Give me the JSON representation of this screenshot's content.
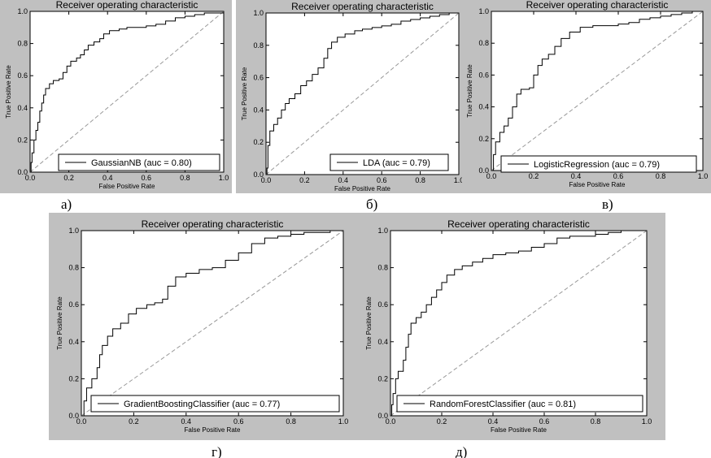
{
  "colors": {
    "panel_bg": "#c0c0c0",
    "plot_bg": "#ffffff",
    "curve": "#000000",
    "diagonal": "#999999"
  },
  "chart_data": [
    {
      "type": "line",
      "title": "Receiver operating characteristic",
      "xlabel": "False Positive Rate",
      "ylabel": "True Positive Rate",
      "xlim": [
        0,
        1
      ],
      "ylim": [
        0,
        1
      ],
      "xticks": [
        "0.0",
        "0.2",
        "0.4",
        "0.6",
        "0.8",
        "1.0"
      ],
      "yticks": [
        "0.0",
        "0.2",
        "0.4",
        "0.6",
        "0.8",
        "1.0"
      ],
      "legend": "GaussianNB (auc = 0.80)",
      "legend_position": "lower-right",
      "caption": "а)",
      "series": [
        {
          "name": "GaussianNB",
          "points": [
            [
              0,
              0
            ],
            [
              0.005,
              0.06
            ],
            [
              0.01,
              0.12
            ],
            [
              0.02,
              0.2
            ],
            [
              0.03,
              0.26
            ],
            [
              0.04,
              0.31
            ],
            [
              0.05,
              0.38
            ],
            [
              0.06,
              0.43
            ],
            [
              0.07,
              0.48
            ],
            [
              0.08,
              0.52
            ],
            [
              0.1,
              0.55
            ],
            [
              0.12,
              0.57
            ],
            [
              0.15,
              0.58
            ],
            [
              0.17,
              0.62
            ],
            [
              0.19,
              0.66
            ],
            [
              0.21,
              0.69
            ],
            [
              0.24,
              0.71
            ],
            [
              0.26,
              0.73
            ],
            [
              0.28,
              0.76
            ],
            [
              0.3,
              0.79
            ],
            [
              0.33,
              0.81
            ],
            [
              0.36,
              0.83
            ],
            [
              0.38,
              0.86
            ],
            [
              0.41,
              0.88
            ],
            [
              0.46,
              0.89
            ],
            [
              0.5,
              0.9
            ],
            [
              0.55,
              0.9
            ],
            [
              0.6,
              0.91
            ],
            [
              0.65,
              0.92
            ],
            [
              0.7,
              0.94
            ],
            [
              0.75,
              0.96
            ],
            [
              0.8,
              0.97
            ],
            [
              0.85,
              0.98
            ],
            [
              0.9,
              0.99
            ],
            [
              0.95,
              0.99
            ],
            [
              1,
              1
            ]
          ]
        }
      ]
    },
    {
      "type": "line",
      "title": "Receiver operating characteristic",
      "xlabel": "False Positive Rate",
      "ylabel": "True Positive Rate",
      "xlim": [
        0,
        1
      ],
      "ylim": [
        0,
        1
      ],
      "xticks": [
        "0.0",
        "0.2",
        "0.4",
        "0.6",
        "0.8",
        "1.0"
      ],
      "yticks": [
        "0.0",
        "0.2",
        "0.4",
        "0.6",
        "0.8",
        "1.0"
      ],
      "legend": "LDA (auc = 0.79)",
      "legend_position": "lower-right",
      "caption": "б)",
      "series": [
        {
          "name": "LDA",
          "points": [
            [
              0,
              0
            ],
            [
              0.005,
              0.04
            ],
            [
              0.01,
              0.18
            ],
            [
              0.02,
              0.27
            ],
            [
              0.04,
              0.31
            ],
            [
              0.06,
              0.35
            ],
            [
              0.08,
              0.4
            ],
            [
              0.1,
              0.44
            ],
            [
              0.12,
              0.47
            ],
            [
              0.15,
              0.5
            ],
            [
              0.18,
              0.55
            ],
            [
              0.21,
              0.58
            ],
            [
              0.24,
              0.62
            ],
            [
              0.27,
              0.66
            ],
            [
              0.3,
              0.72
            ],
            [
              0.32,
              0.78
            ],
            [
              0.34,
              0.82
            ],
            [
              0.37,
              0.85
            ],
            [
              0.41,
              0.87
            ],
            [
              0.46,
              0.89
            ],
            [
              0.5,
              0.9
            ],
            [
              0.55,
              0.91
            ],
            [
              0.6,
              0.92
            ],
            [
              0.65,
              0.93
            ],
            [
              0.7,
              0.95
            ],
            [
              0.75,
              0.96
            ],
            [
              0.8,
              0.97
            ],
            [
              0.85,
              0.98
            ],
            [
              0.9,
              0.99
            ],
            [
              0.95,
              1
            ],
            [
              1,
              1
            ]
          ]
        }
      ]
    },
    {
      "type": "line",
      "title": "Receiver operating characteristic",
      "xlabel": "False Positive Rate",
      "ylabel": "True Positive Rate",
      "xlim": [
        0,
        1
      ],
      "ylim": [
        0,
        1
      ],
      "xticks": [
        "0.0",
        "0.2",
        "0.4",
        "0.6",
        "0.8",
        "1.0"
      ],
      "yticks": [
        "0.0",
        "0.2",
        "0.4",
        "0.6",
        "0.8",
        "1.0"
      ],
      "legend": "LogisticRegression (auc = 0.79)",
      "legend_position": "lower-right",
      "caption": "в)",
      "series": [
        {
          "name": "LogisticRegression",
          "points": [
            [
              0,
              0
            ],
            [
              0.01,
              0.1
            ],
            [
              0.02,
              0.18
            ],
            [
              0.04,
              0.24
            ],
            [
              0.06,
              0.28
            ],
            [
              0.08,
              0.33
            ],
            [
              0.1,
              0.4
            ],
            [
              0.12,
              0.48
            ],
            [
              0.14,
              0.51
            ],
            [
              0.18,
              0.52
            ],
            [
              0.2,
              0.6
            ],
            [
              0.22,
              0.66
            ],
            [
              0.24,
              0.7
            ],
            [
              0.27,
              0.73
            ],
            [
              0.3,
              0.78
            ],
            [
              0.33,
              0.83
            ],
            [
              0.37,
              0.87
            ],
            [
              0.42,
              0.9
            ],
            [
              0.48,
              0.91
            ],
            [
              0.55,
              0.91
            ],
            [
              0.6,
              0.92
            ],
            [
              0.65,
              0.93
            ],
            [
              0.7,
              0.95
            ],
            [
              0.75,
              0.96
            ],
            [
              0.8,
              0.97
            ],
            [
              0.85,
              0.98
            ],
            [
              0.9,
              0.99
            ],
            [
              0.95,
              1
            ],
            [
              1,
              1
            ]
          ]
        }
      ]
    },
    {
      "type": "line",
      "title": "Receiver operating characteristic",
      "xlabel": "False Positive Rate",
      "ylabel": "True Positive Rate",
      "xlim": [
        0,
        1
      ],
      "ylim": [
        0,
        1
      ],
      "xticks": [
        "0.0",
        "0.2",
        "0.4",
        "0.6",
        "0.8",
        "1.0"
      ],
      "yticks": [
        "0.0",
        "0.2",
        "0.4",
        "0.6",
        "0.8",
        "1.0"
      ],
      "legend": "GradientBoostingClassifier (auc = 0.77)",
      "legend_position": "lower-right",
      "caption": "г)",
      "series": [
        {
          "name": "GradientBoostingClassifier",
          "points": [
            [
              0,
              0
            ],
            [
              0.01,
              0.08
            ],
            [
              0.02,
              0.15
            ],
            [
              0.04,
              0.2
            ],
            [
              0.06,
              0.26
            ],
            [
              0.07,
              0.33
            ],
            [
              0.08,
              0.38
            ],
            [
              0.1,
              0.43
            ],
            [
              0.12,
              0.47
            ],
            [
              0.15,
              0.5
            ],
            [
              0.18,
              0.55
            ],
            [
              0.21,
              0.58
            ],
            [
              0.25,
              0.6
            ],
            [
              0.28,
              0.61
            ],
            [
              0.31,
              0.63
            ],
            [
              0.33,
              0.7
            ],
            [
              0.36,
              0.75
            ],
            [
              0.4,
              0.77
            ],
            [
              0.45,
              0.79
            ],
            [
              0.5,
              0.8
            ],
            [
              0.55,
              0.84
            ],
            [
              0.6,
              0.88
            ],
            [
              0.65,
              0.93
            ],
            [
              0.7,
              0.96
            ],
            [
              0.75,
              0.97
            ],
            [
              0.8,
              0.98
            ],
            [
              0.85,
              0.99
            ],
            [
              0.9,
              0.99
            ],
            [
              0.95,
              1
            ],
            [
              1,
              1
            ]
          ]
        }
      ]
    },
    {
      "type": "line",
      "title": "Receiver operating characteristic",
      "xlabel": "False Positive Rate",
      "ylabel": "True Positive Rate",
      "xlim": [
        0,
        1
      ],
      "ylim": [
        0,
        1
      ],
      "xticks": [
        "0.0",
        "0.2",
        "0.4",
        "0.6",
        "0.8",
        "1.0"
      ],
      "yticks": [
        "0.0",
        "0.2",
        "0.4",
        "0.6",
        "0.8",
        "1.0"
      ],
      "legend": "RandomForestClassifier (auc = 0.81)",
      "legend_position": "lower-right",
      "caption": "д)",
      "series": [
        {
          "name": "RandomForestClassifier",
          "points": [
            [
              0,
              0
            ],
            [
              0.005,
              0.06
            ],
            [
              0.01,
              0.12
            ],
            [
              0.02,
              0.2
            ],
            [
              0.03,
              0.24
            ],
            [
              0.05,
              0.3
            ],
            [
              0.06,
              0.37
            ],
            [
              0.07,
              0.44
            ],
            [
              0.08,
              0.5
            ],
            [
              0.1,
              0.53
            ],
            [
              0.12,
              0.56
            ],
            [
              0.14,
              0.6
            ],
            [
              0.16,
              0.64
            ],
            [
              0.18,
              0.68
            ],
            [
              0.2,
              0.72
            ],
            [
              0.22,
              0.76
            ],
            [
              0.25,
              0.79
            ],
            [
              0.28,
              0.81
            ],
            [
              0.32,
              0.83
            ],
            [
              0.36,
              0.85
            ],
            [
              0.4,
              0.87
            ],
            [
              0.45,
              0.88
            ],
            [
              0.5,
              0.89
            ],
            [
              0.55,
              0.91
            ],
            [
              0.6,
              0.93
            ],
            [
              0.65,
              0.96
            ],
            [
              0.7,
              0.97
            ],
            [
              0.75,
              0.97
            ],
            [
              0.8,
              0.98
            ],
            [
              0.85,
              0.99
            ],
            [
              0.9,
              1
            ],
            [
              1,
              1
            ]
          ]
        }
      ]
    }
  ]
}
